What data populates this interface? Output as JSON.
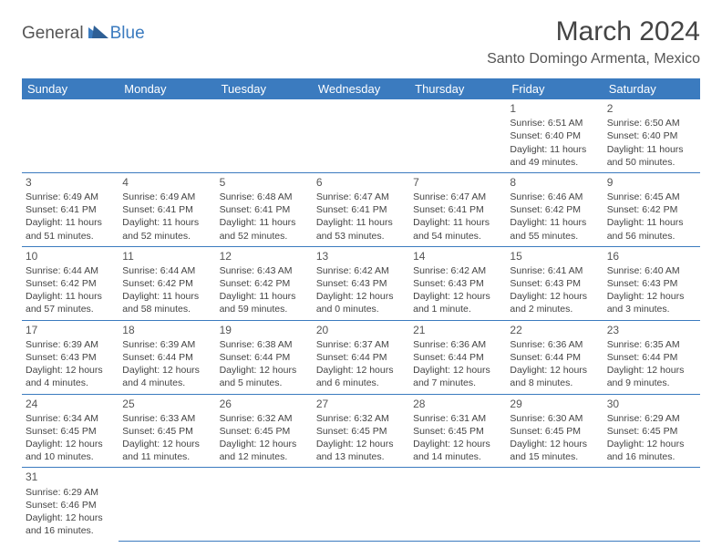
{
  "logo": {
    "part1": "General",
    "part2": "Blue"
  },
  "title": "March 2024",
  "location": "Santo Domingo Armenta, Mexico",
  "colors": {
    "header_bg": "#3b7bbf",
    "header_fg": "#ffffff",
    "text": "#444444",
    "logo_blue": "#3b7bbf",
    "logo_gray": "#555555"
  },
  "dayHeaders": [
    "Sunday",
    "Monday",
    "Tuesday",
    "Wednesday",
    "Thursday",
    "Friday",
    "Saturday"
  ],
  "weeks": [
    [
      null,
      null,
      null,
      null,
      null,
      {
        "n": "1",
        "sr": "6:51 AM",
        "ss": "6:40 PM",
        "dl": "11 hours and 49 minutes."
      },
      {
        "n": "2",
        "sr": "6:50 AM",
        "ss": "6:40 PM",
        "dl": "11 hours and 50 minutes."
      }
    ],
    [
      {
        "n": "3",
        "sr": "6:49 AM",
        "ss": "6:41 PM",
        "dl": "11 hours and 51 minutes."
      },
      {
        "n": "4",
        "sr": "6:49 AM",
        "ss": "6:41 PM",
        "dl": "11 hours and 52 minutes."
      },
      {
        "n": "5",
        "sr": "6:48 AM",
        "ss": "6:41 PM",
        "dl": "11 hours and 52 minutes."
      },
      {
        "n": "6",
        "sr": "6:47 AM",
        "ss": "6:41 PM",
        "dl": "11 hours and 53 minutes."
      },
      {
        "n": "7",
        "sr": "6:47 AM",
        "ss": "6:41 PM",
        "dl": "11 hours and 54 minutes."
      },
      {
        "n": "8",
        "sr": "6:46 AM",
        "ss": "6:42 PM",
        "dl": "11 hours and 55 minutes."
      },
      {
        "n": "9",
        "sr": "6:45 AM",
        "ss": "6:42 PM",
        "dl": "11 hours and 56 minutes."
      }
    ],
    [
      {
        "n": "10",
        "sr": "6:44 AM",
        "ss": "6:42 PM",
        "dl": "11 hours and 57 minutes."
      },
      {
        "n": "11",
        "sr": "6:44 AM",
        "ss": "6:42 PM",
        "dl": "11 hours and 58 minutes."
      },
      {
        "n": "12",
        "sr": "6:43 AM",
        "ss": "6:42 PM",
        "dl": "11 hours and 59 minutes."
      },
      {
        "n": "13",
        "sr": "6:42 AM",
        "ss": "6:43 PM",
        "dl": "12 hours and 0 minutes."
      },
      {
        "n": "14",
        "sr": "6:42 AM",
        "ss": "6:43 PM",
        "dl": "12 hours and 1 minute."
      },
      {
        "n": "15",
        "sr": "6:41 AM",
        "ss": "6:43 PM",
        "dl": "12 hours and 2 minutes."
      },
      {
        "n": "16",
        "sr": "6:40 AM",
        "ss": "6:43 PM",
        "dl": "12 hours and 3 minutes."
      }
    ],
    [
      {
        "n": "17",
        "sr": "6:39 AM",
        "ss": "6:43 PM",
        "dl": "12 hours and 4 minutes."
      },
      {
        "n": "18",
        "sr": "6:39 AM",
        "ss": "6:44 PM",
        "dl": "12 hours and 4 minutes."
      },
      {
        "n": "19",
        "sr": "6:38 AM",
        "ss": "6:44 PM",
        "dl": "12 hours and 5 minutes."
      },
      {
        "n": "20",
        "sr": "6:37 AM",
        "ss": "6:44 PM",
        "dl": "12 hours and 6 minutes."
      },
      {
        "n": "21",
        "sr": "6:36 AM",
        "ss": "6:44 PM",
        "dl": "12 hours and 7 minutes."
      },
      {
        "n": "22",
        "sr": "6:36 AM",
        "ss": "6:44 PM",
        "dl": "12 hours and 8 minutes."
      },
      {
        "n": "23",
        "sr": "6:35 AM",
        "ss": "6:44 PM",
        "dl": "12 hours and 9 minutes."
      }
    ],
    [
      {
        "n": "24",
        "sr": "6:34 AM",
        "ss": "6:45 PM",
        "dl": "12 hours and 10 minutes."
      },
      {
        "n": "25",
        "sr": "6:33 AM",
        "ss": "6:45 PM",
        "dl": "12 hours and 11 minutes."
      },
      {
        "n": "26",
        "sr": "6:32 AM",
        "ss": "6:45 PM",
        "dl": "12 hours and 12 minutes."
      },
      {
        "n": "27",
        "sr": "6:32 AM",
        "ss": "6:45 PM",
        "dl": "12 hours and 13 minutes."
      },
      {
        "n": "28",
        "sr": "6:31 AM",
        "ss": "6:45 PM",
        "dl": "12 hours and 14 minutes."
      },
      {
        "n": "29",
        "sr": "6:30 AM",
        "ss": "6:45 PM",
        "dl": "12 hours and 15 minutes."
      },
      {
        "n": "30",
        "sr": "6:29 AM",
        "ss": "6:45 PM",
        "dl": "12 hours and 16 minutes."
      }
    ],
    [
      {
        "n": "31",
        "sr": "6:29 AM",
        "ss": "6:46 PM",
        "dl": "12 hours and 16 minutes."
      },
      null,
      null,
      null,
      null,
      null,
      null
    ]
  ],
  "labels": {
    "sunrise": "Sunrise:",
    "sunset": "Sunset:",
    "daylight": "Daylight:"
  }
}
